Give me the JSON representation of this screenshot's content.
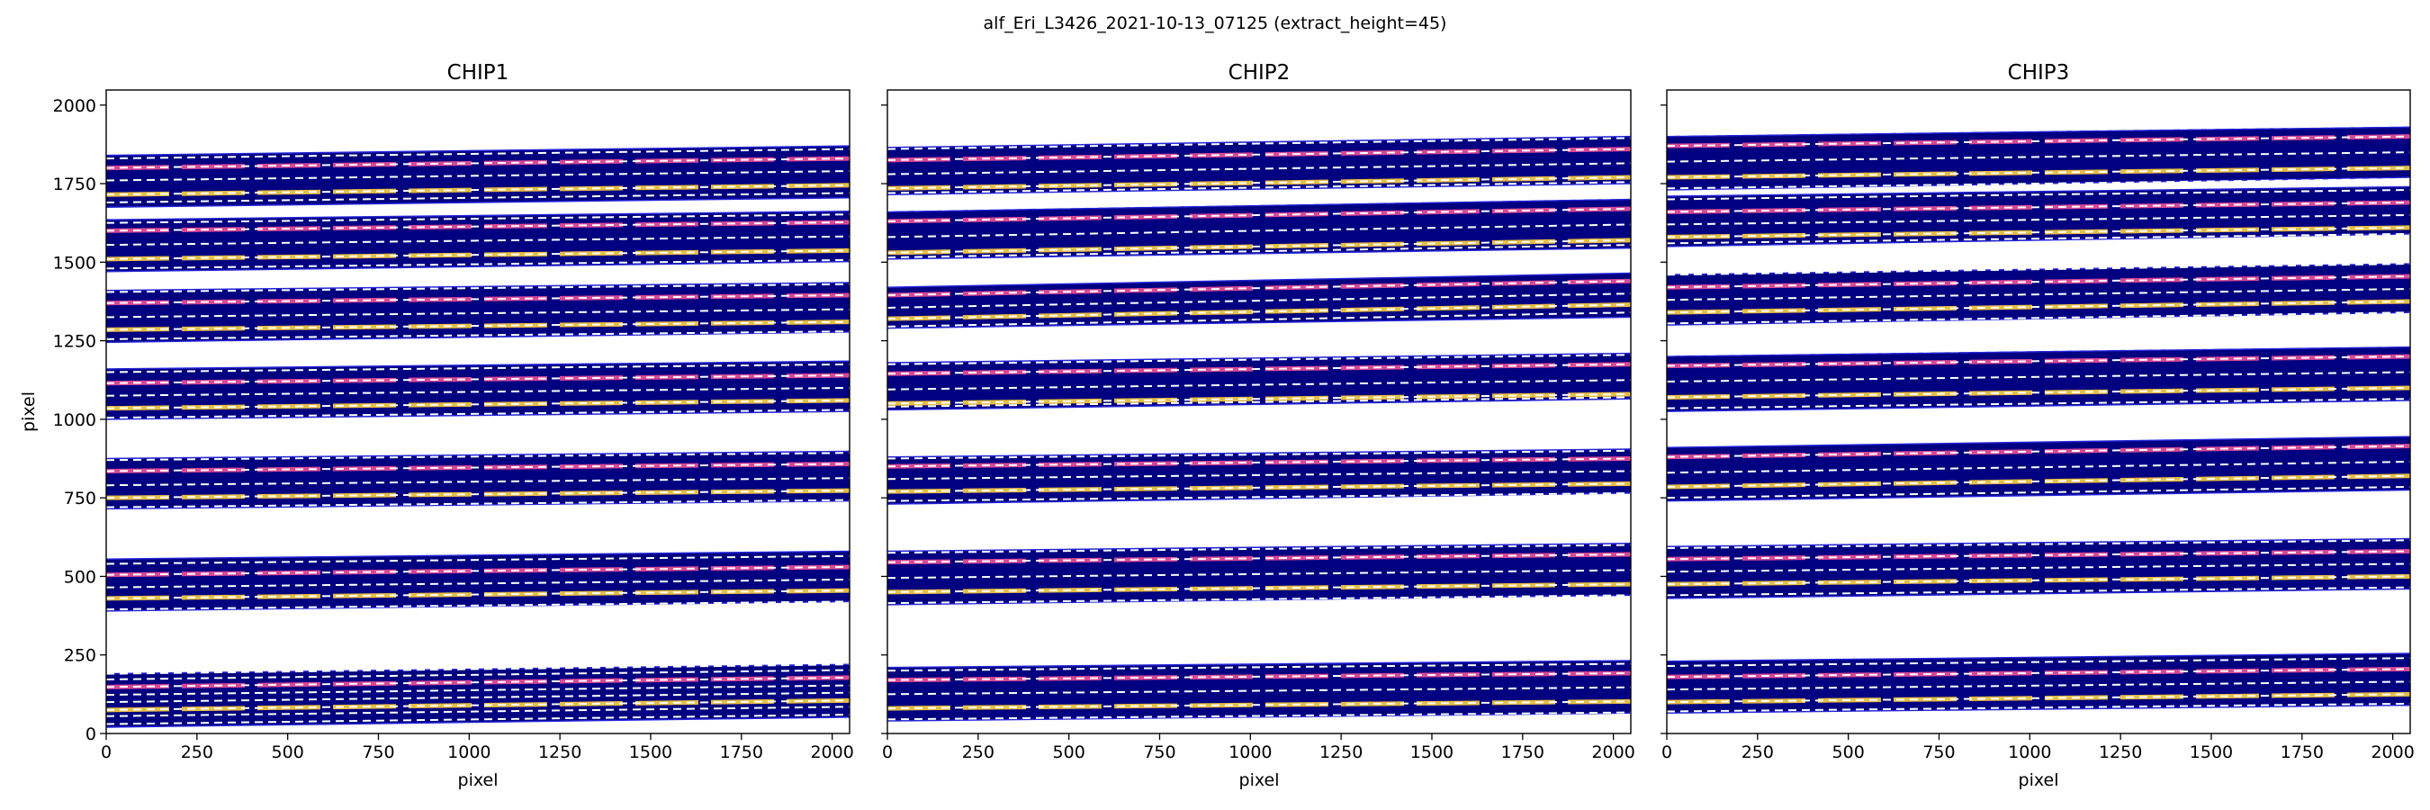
{
  "figure": {
    "suptitle": "alf_Eri_L3426_2021-10-13_07125  (extract_height=45)"
  },
  "colors": {
    "background": "#000080",
    "trace": "#ffd23f",
    "trace_alt": "#f0509a",
    "guide_line": "#ffffff",
    "edge_line": "#2424d8",
    "axes": "#000000"
  },
  "chart_data": [
    {
      "type": "heatmap",
      "title": "CHIP1",
      "xlabel": "pixel",
      "ylabel": "pixel",
      "xlim": [
        0,
        2048
      ],
      "ylim": [
        0,
        2048
      ],
      "xticks": [
        0,
        250,
        500,
        750,
        1000,
        1250,
        1500,
        1750,
        2000
      ],
      "yticks": [
        0,
        250,
        500,
        750,
        1000,
        1250,
        1500,
        1750,
        2000
      ],
      "orders": [
        {
          "lower": [
            20,
            52
          ],
          "upper": [
            190,
            220
          ],
          "traces": [
            75,
            148
          ],
          "guides": [
            30,
            55,
            75,
            100,
            123,
            148,
            172,
            190
          ]
        },
        {
          "lower": [
            390,
            420
          ],
          "upper": [
            555,
            580
          ],
          "traces": [
            430,
            505
          ],
          "guides": [
            395,
            430,
            465,
            505,
            540
          ]
        },
        {
          "lower": [
            715,
            740
          ],
          "upper": [
            875,
            898
          ],
          "traces": [
            750,
            835
          ],
          "guides": [
            720,
            750,
            790,
            835,
            870
          ]
        },
        {
          "lower": [
            1000,
            1025
          ],
          "upper": [
            1160,
            1185
          ],
          "traces": [
            1035,
            1115
          ],
          "guides": [
            1005,
            1035,
            1075,
            1115,
            1150
          ]
        },
        {
          "lower": [
            1245,
            1278
          ],
          "upper": [
            1410,
            1435
          ],
          "traces": [
            1285,
            1370
          ],
          "guides": [
            1255,
            1285,
            1325,
            1370,
            1405
          ]
        },
        {
          "lower": [
            1470,
            1502
          ],
          "upper": [
            1635,
            1662
          ],
          "traces": [
            1510,
            1600
          ],
          "guides": [
            1480,
            1510,
            1555,
            1600,
            1625
          ]
        },
        {
          "lower": [
            1675,
            1705
          ],
          "upper": [
            1840,
            1870
          ],
          "traces": [
            1715,
            1800
          ],
          "guides": [
            1690,
            1715,
            1760,
            1800,
            1830
          ]
        }
      ]
    },
    {
      "type": "heatmap",
      "title": "CHIP2",
      "xlabel": "pixel",
      "ylabel": "",
      "xlim": [
        0,
        2048
      ],
      "ylim": [
        0,
        2048
      ],
      "xticks": [
        0,
        250,
        500,
        750,
        1000,
        1250,
        1500,
        1750,
        2000
      ],
      "yticks": [
        0,
        250,
        500,
        750,
        1000,
        1250,
        1500,
        1750,
        2000
      ],
      "orders": [
        {
          "lower": [
            40,
            65
          ],
          "upper": [
            210,
            232
          ],
          "traces": [
            80,
            170
          ],
          "guides": [
            45,
            80,
            125,
            170,
            200
          ]
        },
        {
          "lower": [
            410,
            440
          ],
          "upper": [
            580,
            605
          ],
          "traces": [
            450,
            545
          ],
          "guides": [
            415,
            450,
            495,
            545,
            575
          ]
        },
        {
          "lower": [
            730,
            765
          ],
          "upper": [
            880,
            905
          ],
          "traces": [
            770,
            850
          ],
          "guides": [
            740,
            770,
            810,
            850,
            875
          ]
        },
        {
          "lower": [
            1030,
            1065
          ],
          "upper": [
            1180,
            1210
          ],
          "traces": [
            1050,
            1145
          ],
          "guides": [
            1040,
            1050,
            1095,
            1145,
            1175
          ]
        },
        {
          "lower": [
            1290,
            1325
          ],
          "upper": [
            1420,
            1465
          ],
          "traces": [
            1320,
            1395
          ],
          "guides": [
            1295,
            1320,
            1355,
            1395,
            1430
          ]
        },
        {
          "lower": [
            1510,
            1545
          ],
          "upper": [
            1660,
            1700
          ],
          "traces": [
            1530,
            1630
          ],
          "guides": [
            1515,
            1530,
            1580,
            1630,
            1665
          ]
        },
        {
          "lower": [
            1715,
            1750
          ],
          "upper": [
            1865,
            1900
          ],
          "traces": [
            1735,
            1825
          ],
          "guides": [
            1720,
            1735,
            1780,
            1825,
            1860
          ]
        }
      ]
    },
    {
      "type": "heatmap",
      "title": "CHIP3",
      "xlabel": "pixel",
      "ylabel": "",
      "xlim": [
        0,
        2048
      ],
      "ylim": [
        0,
        2048
      ],
      "xticks": [
        0,
        250,
        500,
        750,
        1000,
        1250,
        1500,
        1750,
        2000
      ],
      "yticks": [
        0,
        250,
        500,
        750,
        1000,
        1250,
        1500,
        1750,
        2000
      ],
      "orders": [
        {
          "lower": [
            65,
            90
          ],
          "upper": [
            230,
            255
          ],
          "traces": [
            100,
            180
          ],
          "guides": [
            70,
            100,
            140,
            180,
            215
          ]
        },
        {
          "lower": [
            430,
            460
          ],
          "upper": [
            595,
            620
          ],
          "traces": [
            475,
            555
          ],
          "guides": [
            440,
            475,
            515,
            555,
            590
          ]
        },
        {
          "lower": [
            740,
            775
          ],
          "upper": [
            910,
            945
          ],
          "traces": [
            785,
            880
          ],
          "guides": [
            750,
            785,
            830,
            880,
            920
          ]
        },
        {
          "lower": [
            1025,
            1060
          ],
          "upper": [
            1200,
            1230
          ],
          "traces": [
            1070,
            1170
          ],
          "guides": [
            1035,
            1070,
            1120,
            1170,
            1205
          ]
        },
        {
          "lower": [
            1300,
            1340
          ],
          "upper": [
            1460,
            1495
          ],
          "traces": [
            1340,
            1420
          ],
          "guides": [
            1305,
            1340,
            1380,
            1420,
            1460
          ]
        },
        {
          "lower": [
            1550,
            1590
          ],
          "upper": [
            1710,
            1740
          ],
          "traces": [
            1580,
            1660
          ],
          "guides": [
            1560,
            1580,
            1620,
            1660,
            1700
          ]
        },
        {
          "lower": [
            1730,
            1770
          ],
          "upper": [
            1900,
            1930
          ],
          "traces": [
            1770,
            1870
          ],
          "guides": [
            1735,
            1770,
            1820,
            1870,
            1905
          ]
        }
      ]
    }
  ]
}
